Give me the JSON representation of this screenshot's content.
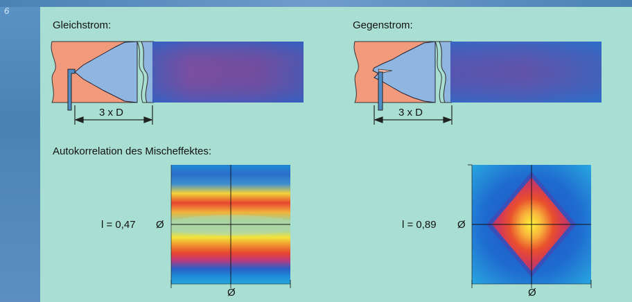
{
  "page_number": "6",
  "labels": {
    "cocurrent": "Gleichstrom:",
    "countercurrent": "Gegenstrom:",
    "autocorrelation": "Autokorrelation des Mischeffektes:"
  },
  "dimension_label": "3 x D",
  "plot_left": {
    "lambda_label": "l = 0,47",
    "y_axis_label": "Ø",
    "x_axis_label": "Ø"
  },
  "plot_right": {
    "lambda_label": "l = 0,89",
    "y_axis_label": "Ø",
    "x_axis_label": "Ø"
  },
  "colors": {
    "background": "#a9dfd3",
    "pipe_salmon": "#f29a7c",
    "jet_blue": "#8fb6e0",
    "injector": "#4f8ec7"
  }
}
